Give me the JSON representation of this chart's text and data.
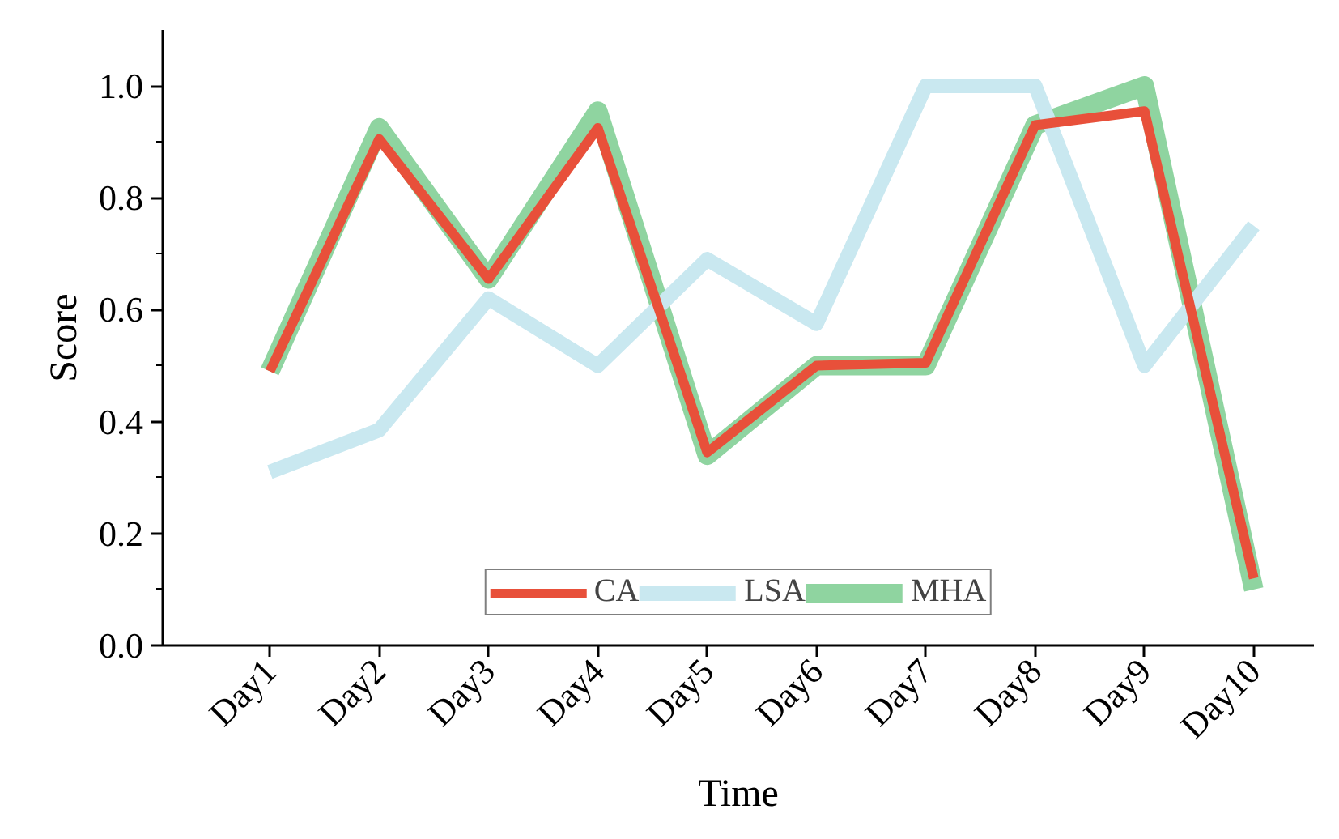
{
  "chart_data": {
    "type": "line",
    "xlabel": "Time",
    "ylabel": "Score",
    "categories": [
      "Day1",
      "Day2",
      "Day3",
      "Day4",
      "Day5",
      "Day6",
      "Day7",
      "Day8",
      "Day9",
      "Day10"
    ],
    "series": [
      {
        "name": "CA",
        "color": "#e8503a",
        "values": [
          0.49,
          0.905,
          0.655,
          0.925,
          0.345,
          0.5,
          0.505,
          0.93,
          0.955,
          0.12
        ]
      },
      {
        "name": "LSA",
        "color": "#c9e8f0",
        "values": [
          0.31,
          0.385,
          0.62,
          0.5,
          0.69,
          0.575,
          1.0,
          1.0,
          0.5,
          0.75
        ]
      },
      {
        "name": "MHA",
        "color": "#8fd4a0",
        "values": [
          0.49,
          0.925,
          0.655,
          0.955,
          0.34,
          0.5,
          0.5,
          0.93,
          1.0,
          0.1
        ]
      }
    ],
    "ylim": [
      0,
      1.1
    ],
    "yticks": [
      {
        "value": 0,
        "label": "0.0"
      },
      {
        "value": 0.2,
        "label": "0.2"
      },
      {
        "value": 0.4,
        "label": "0.4"
      },
      {
        "value": 0.6,
        "label": "0.6"
      },
      {
        "value": 0.8,
        "label": "0.8"
      },
      {
        "value": 1,
        "label": "1.0"
      }
    ],
    "legend": "bottom",
    "grid": false,
    "line_style": "solid",
    "marker": "none"
  }
}
